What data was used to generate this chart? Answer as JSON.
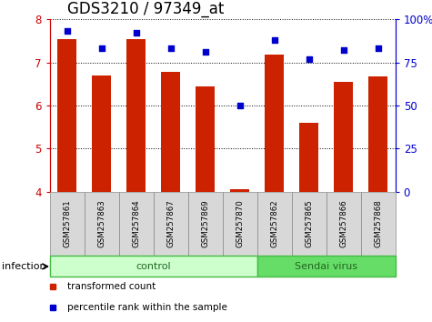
{
  "title": "GDS3210 / 97349_at",
  "samples": [
    "GSM257861",
    "GSM257863",
    "GSM257864",
    "GSM257867",
    "GSM257869",
    "GSM257870",
    "GSM257862",
    "GSM257865",
    "GSM257866",
    "GSM257868"
  ],
  "bar_values": [
    7.55,
    6.7,
    7.55,
    6.78,
    6.45,
    4.05,
    7.18,
    5.6,
    6.55,
    6.67
  ],
  "percentile_values": [
    93,
    83,
    92,
    83,
    81,
    50,
    88,
    77,
    82,
    83
  ],
  "groups": [
    {
      "label": "control",
      "start": 0,
      "end": 6,
      "color": "#ccffcc",
      "edge": "#44bb44"
    },
    {
      "label": "Sendai virus",
      "start": 6,
      "end": 10,
      "color": "#66dd66",
      "edge": "#44bb44"
    }
  ],
  "group_label": "infection",
  "bar_color": "#cc2200",
  "dot_color": "#0000cc",
  "ylim_left": [
    4,
    8
  ],
  "ylim_right": [
    0,
    100
  ],
  "yticks_left": [
    4,
    5,
    6,
    7,
    8
  ],
  "yticks_right": [
    0,
    25,
    50,
    75,
    100
  ],
  "legend_items": [
    {
      "label": "transformed count",
      "color": "#cc2200"
    },
    {
      "label": "percentile rank within the sample",
      "color": "#0000cc"
    }
  ],
  "bar_color_spine": "#cc0000",
  "blue_spine": "#0000cc",
  "bar_width": 0.55,
  "title_fontsize": 12,
  "sample_box_color": "#d8d8d8",
  "sample_box_edge": "#888888"
}
